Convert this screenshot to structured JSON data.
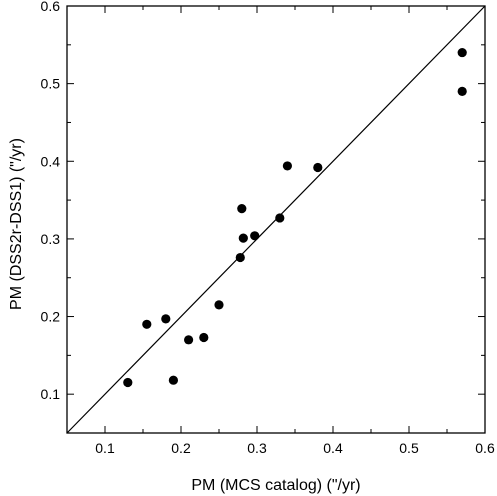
{
  "chart_data": {
    "type": "scatter",
    "title": "",
    "xlabel": "PM (MCS catalog) (\"/yr)",
    "ylabel": "PM (DSS2r-DSS1) (\"/yr)",
    "xlim": [
      0.05,
      0.6
    ],
    "ylim": [
      0.05,
      0.6
    ],
    "xticks": [
      0.1,
      0.2,
      0.3,
      0.4,
      0.5,
      0.6
    ],
    "yticks": [
      0.1,
      0.2,
      0.3,
      0.4,
      0.5,
      0.6
    ],
    "x_tick_labels": [
      "0.1",
      "0.2",
      "0.3",
      "0.4",
      "0.5",
      "0.6"
    ],
    "y_tick_labels": [
      "0.1",
      "0.2",
      "0.3",
      "0.4",
      "0.5",
      "0.6"
    ],
    "grid": false,
    "reference_line": "y = x",
    "points": [
      {
        "x": 0.13,
        "y": 0.115
      },
      {
        "x": 0.155,
        "y": 0.19
      },
      {
        "x": 0.18,
        "y": 0.197
      },
      {
        "x": 0.19,
        "y": 0.118
      },
      {
        "x": 0.21,
        "y": 0.17
      },
      {
        "x": 0.23,
        "y": 0.173
      },
      {
        "x": 0.25,
        "y": 0.215
      },
      {
        "x": 0.278,
        "y": 0.276
      },
      {
        "x": 0.28,
        "y": 0.339
      },
      {
        "x": 0.282,
        "y": 0.301
      },
      {
        "x": 0.297,
        "y": 0.304
      },
      {
        "x": 0.33,
        "y": 0.327
      },
      {
        "x": 0.34,
        "y": 0.394
      },
      {
        "x": 0.38,
        "y": 0.392
      },
      {
        "x": 0.57,
        "y": 0.54
      },
      {
        "x": 0.57,
        "y": 0.49
      }
    ]
  }
}
